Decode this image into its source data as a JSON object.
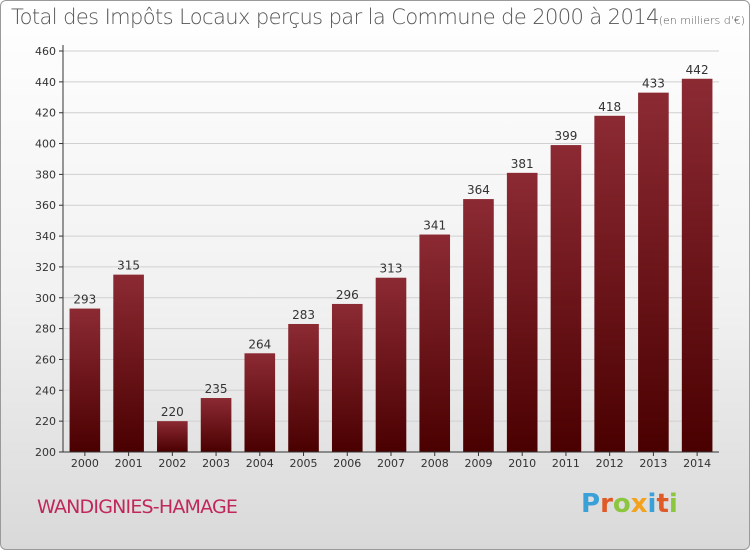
{
  "header": {
    "title": "Total des Impôts Locaux perçus par la Commune de 2000 à 2014",
    "unit": "(en milliers d'€)"
  },
  "footer": {
    "commune": "WANDIGNIES-HAMAGE",
    "logo_letters": [
      "P",
      "r",
      "o",
      "x",
      "i",
      "t",
      "i"
    ],
    "logo_colors": [
      "#3aa0d8",
      "#e05a28",
      "#8cc63f",
      "#f2a21c",
      "#3aa0d8",
      "#e05a28",
      "#8cc63f"
    ]
  },
  "colors": {
    "bar_top": "#8c2a33",
    "bar_bottom": "#4a0000",
    "grid": "#d0d0d0",
    "axis": "#333333"
  },
  "chart_data": {
    "type": "bar",
    "categories": [
      "2000",
      "2001",
      "2002",
      "2003",
      "2004",
      "2005",
      "2006",
      "2007",
      "2008",
      "2009",
      "2010",
      "2011",
      "2012",
      "2013",
      "2014"
    ],
    "values": [
      293,
      315,
      220,
      235,
      264,
      283,
      296,
      313,
      341,
      364,
      381,
      399,
      418,
      433,
      442
    ],
    "ylim": [
      200,
      460
    ],
    "yticks": [
      200,
      220,
      240,
      260,
      280,
      300,
      320,
      340,
      360,
      380,
      400,
      420,
      440,
      460
    ],
    "grid": true
  }
}
